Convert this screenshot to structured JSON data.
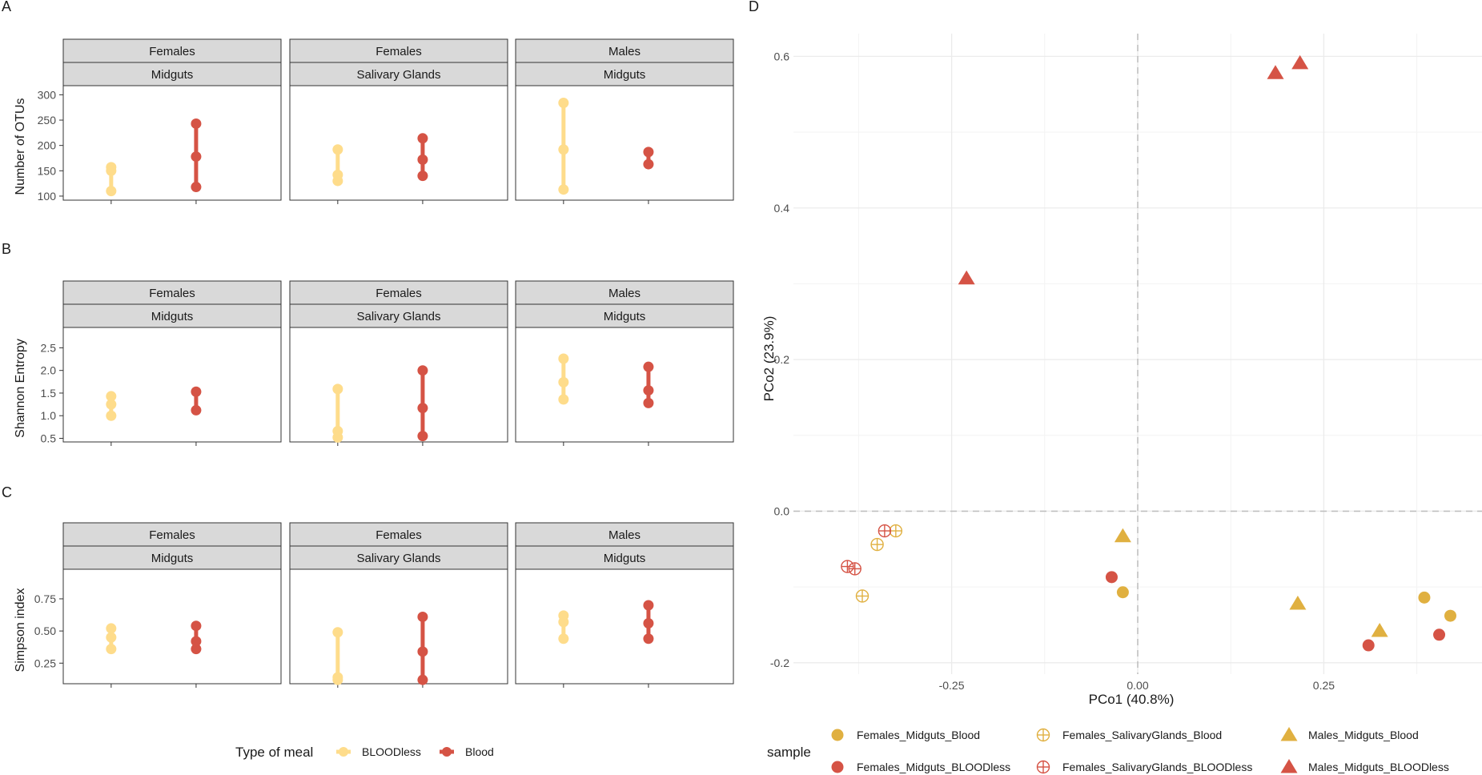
{
  "colors": {
    "bloodless": "#fedc8b",
    "blood": "#d55345",
    "pcoa_blood": "#e0b040",
    "pcoa_bloodless": "#d55345",
    "grid": "#ebebeb",
    "zero_line": "#bdbdbd"
  },
  "panel_labels": {
    "a": "A",
    "b": "B",
    "c": "C",
    "d": "D"
  },
  "legend_left": {
    "title": "Type of meal",
    "items": [
      {
        "label": "BLOODless",
        "color": "#fedc8b"
      },
      {
        "label": "Blood",
        "color": "#d55345"
      }
    ]
  },
  "legend_right": {
    "title": "sample",
    "items": [
      {
        "label": "Females_Midguts_Blood",
        "shape": "circle",
        "color": "#e0b040"
      },
      {
        "label": "Females_SalivaryGlands_Blood",
        "shape": "crosscircle",
        "color": "#e0b040"
      },
      {
        "label": "Males_Midguts_Blood",
        "shape": "triangle",
        "color": "#e0b040"
      },
      {
        "label": "Females_Midguts_BLOODless",
        "shape": "circle",
        "color": "#d55345"
      },
      {
        "label": "Females_SalivaryGlands_BLOODless",
        "shape": "crosscircle",
        "color": "#d55345"
      },
      {
        "label": "Males_Midguts_BLOODless",
        "shape": "triangle",
        "color": "#d55345"
      }
    ]
  },
  "chart_data": [
    {
      "id": "A",
      "type": "scatter",
      "ylabel": "Number of OTUs",
      "yticks": [
        100,
        150,
        200,
        250,
        300
      ],
      "ylim": [
        92,
        318
      ],
      "categories": [
        "BLOODless",
        "Blood"
      ],
      "facets": [
        {
          "strip": [
            "Females",
            "Midguts"
          ],
          "BLOODless": [
            110,
            150,
            157
          ],
          "Blood": [
            118,
            178,
            243
          ]
        },
        {
          "strip": [
            "Females",
            "Salivary Glands"
          ],
          "BLOODless": [
            130,
            142,
            192
          ],
          "Blood": [
            140,
            172,
            214
          ]
        },
        {
          "strip": [
            "Males",
            "Midguts"
          ],
          "BLOODless": [
            113,
            192,
            284
          ],
          "Blood": [
            163,
            187
          ]
        }
      ]
    },
    {
      "id": "B",
      "type": "scatter",
      "ylabel": "Shannon Entropy",
      "yticks": [
        0.5,
        1.0,
        1.5,
        2.0,
        2.5
      ],
      "ytick_labels": [
        "0.5",
        "1.0",
        "1.5",
        "2.0",
        "2.5"
      ],
      "ylim": [
        0.42,
        2.95
      ],
      "categories": [
        "BLOODless",
        "Blood"
      ],
      "facets": [
        {
          "strip": [
            "Females",
            "Midguts"
          ],
          "BLOODless": [
            1.0,
            1.25,
            1.43
          ],
          "Blood": [
            1.12,
            1.53
          ]
        },
        {
          "strip": [
            "Females",
            "Salivary Glands"
          ],
          "BLOODless": [
            0.52,
            0.66,
            1.59
          ],
          "Blood": [
            0.55,
            1.17,
            2.0
          ]
        },
        {
          "strip": [
            "Males",
            "Midguts"
          ],
          "BLOODless": [
            1.36,
            1.74,
            2.26
          ],
          "Blood": [
            1.28,
            1.56,
            2.08
          ]
        }
      ]
    },
    {
      "id": "C",
      "type": "scatter",
      "ylabel": "Simpson index",
      "yticks": [
        0.25,
        0.5,
        0.75
      ],
      "ytick_labels": [
        "0.25",
        "0.50",
        "0.75"
      ],
      "ylim": [
        0.09,
        0.98
      ],
      "categories": [
        "BLOODless",
        "Blood"
      ],
      "facets": [
        {
          "strip": [
            "Females",
            "Midguts"
          ],
          "BLOODless": [
            0.36,
            0.45,
            0.52
          ],
          "Blood": [
            0.36,
            0.42,
            0.54
          ]
        },
        {
          "strip": [
            "Females",
            "Salivary Glands"
          ],
          "BLOODless": [
            0.12,
            0.14,
            0.49
          ],
          "Blood": [
            0.12,
            0.34,
            0.61
          ]
        },
        {
          "strip": [
            "Males",
            "Midguts"
          ],
          "BLOODless": [
            0.44,
            0.57,
            0.62
          ],
          "Blood": [
            0.44,
            0.56,
            0.7
          ]
        }
      ]
    },
    {
      "id": "D",
      "type": "scatter",
      "title": "",
      "xlabel": "PCo1 (40.8%)",
      "ylabel": "PCo2 (23.9%)",
      "xlim": [
        -0.4625,
        0.4625
      ],
      "ylim": [
        -0.215,
        0.63
      ],
      "xticks": [
        -0.25,
        0.0,
        0.25
      ],
      "xtick_labels": [
        "-0.25",
        "0.00",
        "0.25"
      ],
      "yticks": [
        -0.2,
        0.0,
        0.2,
        0.4,
        0.6
      ],
      "ytick_labels": [
        "-0.2",
        "0.0",
        "0.2",
        "0.4",
        "0.6"
      ],
      "series": [
        {
          "name": "Females_Midguts_Blood",
          "points": [
            [
              -0.02,
              -0.107
            ],
            [
              0.385,
              -0.114
            ],
            [
              0.42,
              -0.138
            ]
          ]
        },
        {
          "name": "Females_SalivaryGlands_Blood",
          "points": [
            [
              -0.37,
              -0.112
            ],
            [
              -0.35,
              -0.044
            ],
            [
              -0.325,
              -0.026
            ]
          ]
        },
        {
          "name": "Males_Midguts_Blood",
          "points": [
            [
              -0.02,
              -0.033
            ],
            [
              0.215,
              -0.122
            ],
            [
              0.325,
              -0.158
            ]
          ]
        },
        {
          "name": "Females_Midguts_BLOODless",
          "points": [
            [
              -0.035,
              -0.087
            ],
            [
              0.31,
              -0.177
            ],
            [
              0.405,
              -0.163
            ]
          ]
        },
        {
          "name": "Females_SalivaryGlands_BLOODless",
          "points": [
            [
              -0.39,
              -0.073
            ],
            [
              -0.38,
              -0.076
            ],
            [
              -0.34,
              -0.026
            ]
          ]
        },
        {
          "name": "Males_Midguts_BLOODless",
          "points": [
            [
              -0.23,
              0.307
            ],
            [
              0.185,
              0.578
            ],
            [
              0.218,
              0.591
            ]
          ]
        }
      ]
    }
  ]
}
